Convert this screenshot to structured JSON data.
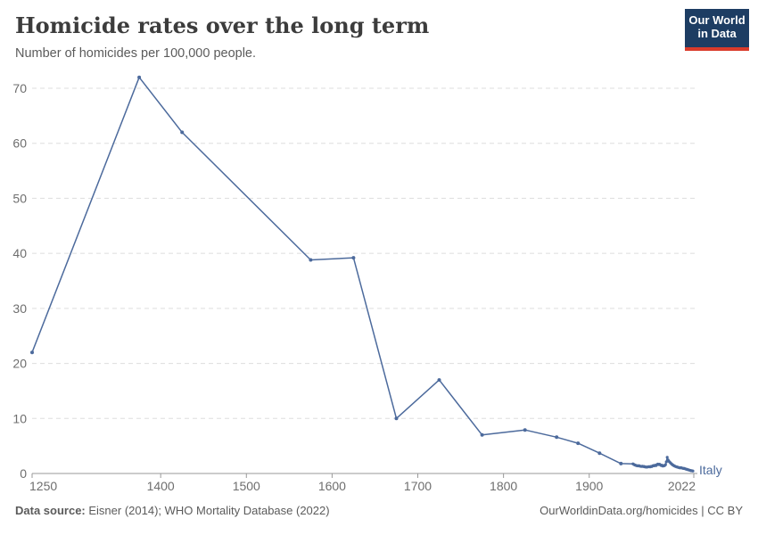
{
  "header": {
    "title": "Homicide rates over the long term",
    "subtitle": "Number of homicides per 100,000 people."
  },
  "logo": {
    "line1": "Our World",
    "line2": "in Data"
  },
  "chart_data": {
    "type": "line",
    "title": "Homicide rates over the long term",
    "subtitle": "Number of homicides per 100,000 people.",
    "xlabel": "",
    "ylabel": "",
    "xlim": [
      1250,
      2022
    ],
    "ylim": [
      0,
      70
    ],
    "grid": "horizontal-dashed",
    "legend_position": "end-of-line-label",
    "x_ticks": [
      1250,
      1400,
      1500,
      1600,
      1700,
      1800,
      1900,
      2022
    ],
    "y_ticks": [
      0,
      10,
      20,
      30,
      40,
      50,
      60,
      70
    ],
    "series": [
      {
        "name": "Italy",
        "color": "#4C6A9C",
        "points": [
          [
            1250,
            22
          ],
          [
            1375,
            72
          ],
          [
            1425,
            62
          ],
          [
            1575,
            38.8
          ],
          [
            1625,
            39.2
          ],
          [
            1675,
            10
          ],
          [
            1725,
            17
          ],
          [
            1775,
            7
          ],
          [
            1825,
            7.9
          ],
          [
            1862,
            6.6
          ],
          [
            1887,
            5.5
          ],
          [
            1912,
            3.7
          ],
          [
            1937,
            1.8
          ],
          [
            1951,
            1.75
          ],
          [
            1952,
            1.65
          ],
          [
            1953,
            1.55
          ],
          [
            1954,
            1.5
          ],
          [
            1955,
            1.45
          ],
          [
            1956,
            1.4
          ],
          [
            1957,
            1.38
          ],
          [
            1958,
            1.42
          ],
          [
            1959,
            1.35
          ],
          [
            1960,
            1.3
          ],
          [
            1961,
            1.28
          ],
          [
            1962,
            1.32
          ],
          [
            1963,
            1.25
          ],
          [
            1964,
            1.28
          ],
          [
            1965,
            1.2
          ],
          [
            1966,
            1.18
          ],
          [
            1967,
            1.15
          ],
          [
            1968,
            1.18
          ],
          [
            1969,
            1.22
          ],
          [
            1970,
            1.25
          ],
          [
            1971,
            1.2
          ],
          [
            1972,
            1.28
          ],
          [
            1973,
            1.25
          ],
          [
            1974,
            1.38
          ],
          [
            1975,
            1.45
          ],
          [
            1976,
            1.4
          ],
          [
            1977,
            1.5
          ],
          [
            1978,
            1.45
          ],
          [
            1979,
            1.6
          ],
          [
            1980,
            1.7
          ],
          [
            1981,
            1.62
          ],
          [
            1982,
            1.68
          ],
          [
            1983,
            1.55
          ],
          [
            1984,
            1.45
          ],
          [
            1985,
            1.5
          ],
          [
            1986,
            1.35
          ],
          [
            1987,
            1.4
          ],
          [
            1988,
            1.45
          ],
          [
            1989,
            1.6
          ],
          [
            1990,
            2.1
          ],
          [
            1991,
            2.95
          ],
          [
            1992,
            2.45
          ],
          [
            1993,
            2.2
          ],
          [
            1994,
            2.05
          ],
          [
            1995,
            1.9
          ],
          [
            1996,
            1.75
          ],
          [
            1997,
            1.6
          ],
          [
            1998,
            1.5
          ],
          [
            1999,
            1.4
          ],
          [
            2000,
            1.32
          ],
          [
            2001,
            1.25
          ],
          [
            2002,
            1.2
          ],
          [
            2003,
            1.15
          ],
          [
            2004,
            1.1
          ],
          [
            2005,
            1.05
          ],
          [
            2006,
            1.0
          ],
          [
            2007,
            1.05
          ],
          [
            2008,
            1.0
          ],
          [
            2009,
            0.95
          ],
          [
            2010,
            0.9
          ],
          [
            2011,
            0.9
          ],
          [
            2012,
            0.85
          ],
          [
            2013,
            0.8
          ],
          [
            2014,
            0.75
          ],
          [
            2015,
            0.7
          ],
          [
            2016,
            0.65
          ],
          [
            2017,
            0.6
          ],
          [
            2018,
            0.55
          ],
          [
            2019,
            0.5
          ],
          [
            2020,
            0.48
          ],
          [
            2021,
            0.45
          ]
        ]
      }
    ]
  },
  "colors": {
    "line": "#4C6A9C",
    "grid": "#DDDDDD",
    "axis": "#999999",
    "tick_label": "#6E6E6E",
    "title": "#3C3C3C",
    "subtitle": "#5B5B5B",
    "logo_bg": "#1D3D63",
    "logo_bar": "#D93B2B"
  },
  "footer": {
    "source_label": "Data source:",
    "source_text": " Eisner (2014); WHO Mortality Database (2022)",
    "credit": "OurWorldinData.org/homicides | CC BY"
  }
}
